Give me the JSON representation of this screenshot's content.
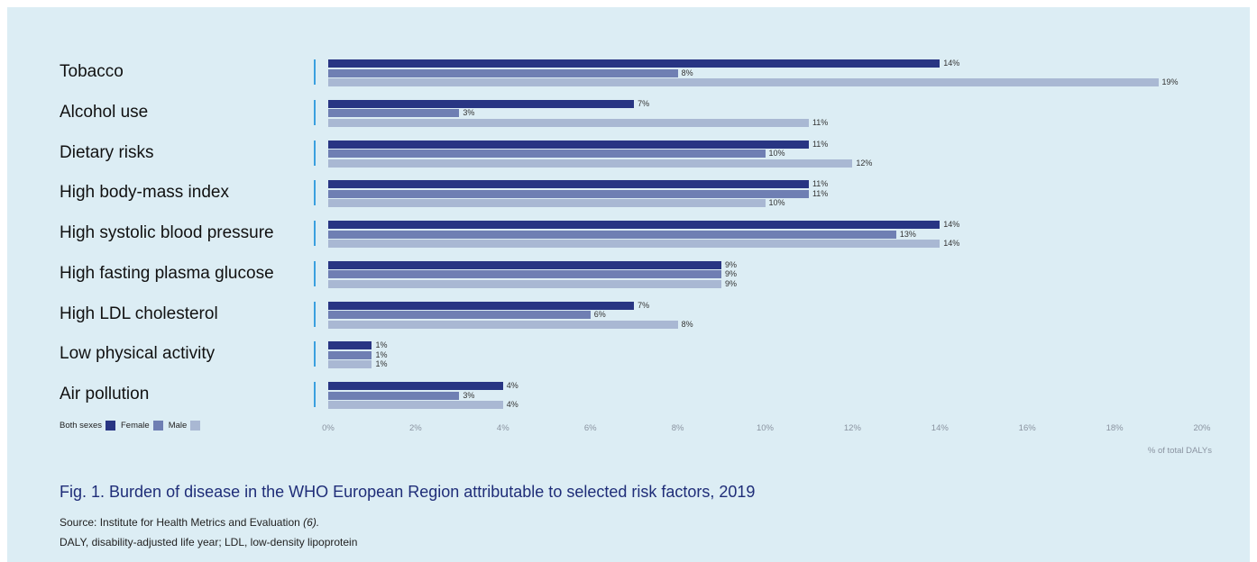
{
  "chart_data": {
    "type": "bar",
    "orientation": "horizontal",
    "categories": [
      "Tobacco",
      "Alcohol use",
      "Dietary risks",
      "High body-mass index",
      "High systolic blood pressure",
      "High fasting plasma glucose",
      "High LDL cholesterol",
      "Low physical activity",
      "Air pollution"
    ],
    "series": [
      {
        "name": "Both sexes",
        "color": "#283583",
        "values": [
          14,
          7,
          11,
          11,
          14,
          9,
          7,
          1,
          4
        ]
      },
      {
        "name": "Female",
        "color": "#6f7fb3",
        "values": [
          8,
          3,
          10,
          11,
          13,
          9,
          6,
          1,
          3
        ]
      },
      {
        "name": "Male",
        "color": "#a9b8d3",
        "values": [
          19,
          11,
          12,
          10,
          14,
          9,
          8,
          1,
          4
        ]
      }
    ],
    "value_suffix": "%",
    "xlim": [
      0,
      20
    ],
    "xticks": [
      "0%",
      "2%",
      "4%",
      "6%",
      "8%",
      "10%",
      "12%",
      "14%",
      "16%",
      "18%",
      "20%"
    ],
    "xlabel": "% of total DALYs",
    "legend_position": "bottom-left",
    "grid": false
  },
  "caption": {
    "title": "Fig. 1. Burden of disease in the WHO European Region attributable to selected risk factors, 2019",
    "source_text": "Source: Institute for Health Metrics and Evaluation",
    "source_ref": "(6).",
    "abbreviations": "DALY, disability-adjusted life year; LDL, low-density lipoprotein"
  }
}
